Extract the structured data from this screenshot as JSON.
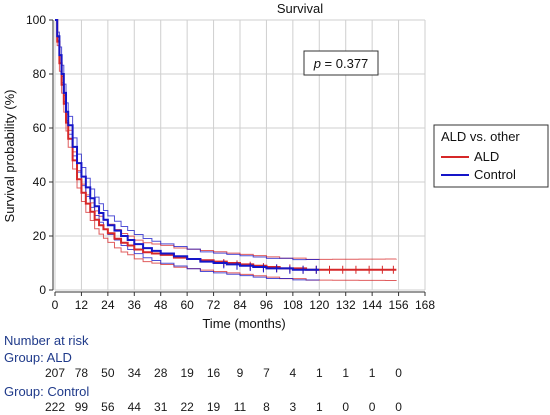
{
  "chart_data": {
    "type": "line",
    "title": "Survival",
    "xlabel": "Time (months)",
    "ylabel": "Survival probability (%)",
    "xlim": [
      0,
      168
    ],
    "ylim": [
      0,
      100
    ],
    "x_ticks": [
      "0",
      "12",
      "24",
      "36",
      "48",
      "60",
      "72",
      "84",
      "96",
      "108",
      "120",
      "132",
      "144",
      "156",
      "168"
    ],
    "y_ticks": [
      "0",
      "20",
      "40",
      "60",
      "80",
      "100"
    ],
    "grid": true,
    "annotation": {
      "italic": "p",
      "text": " = 0.377"
    },
    "legend": {
      "title": "ALD vs. other",
      "position": "right",
      "entries": [
        {
          "label": "ALD",
          "color": "#d62728"
        },
        {
          "label": "Control",
          "color": "#1515c8"
        }
      ]
    },
    "series": [
      {
        "name": "ALD",
        "color": "#d62728",
        "x": [
          0,
          1,
          2,
          3,
          4,
          5,
          6,
          8,
          10,
          12,
          14,
          16,
          18,
          20,
          22,
          24,
          27,
          30,
          33,
          36,
          40,
          44,
          48,
          54,
          60,
          66,
          72,
          78,
          84,
          90,
          96,
          102,
          108,
          114,
          120,
          126,
          132,
          138,
          144,
          150,
          155
        ],
        "y": [
          100,
          92,
          84,
          76,
          69,
          62,
          56,
          48,
          41,
          36,
          32,
          29,
          26,
          24,
          22.5,
          21,
          19,
          17.5,
          16.5,
          15,
          14,
          13.5,
          13,
          12,
          11.5,
          11,
          10.5,
          10,
          9.5,
          9,
          8.5,
          8,
          8,
          7.5,
          7.5,
          7.5,
          7.5,
          7.5,
          7.5,
          7.5,
          7.5
        ]
      },
      {
        "name": "Control",
        "color": "#1515c8",
        "x": [
          0,
          1,
          2,
          3,
          4,
          5,
          6,
          8,
          10,
          12,
          14,
          16,
          18,
          20,
          22,
          24,
          27,
          30,
          33,
          36,
          40,
          44,
          48,
          54,
          60,
          66,
          72,
          78,
          84,
          90,
          96,
          102,
          108,
          114,
          120
        ],
        "y": [
          100,
          94,
          87,
          80,
          73,
          66,
          61,
          53,
          47,
          42,
          38,
          34,
          31,
          28.5,
          26,
          24,
          22,
          20,
          18.5,
          17,
          15.5,
          14.5,
          13.5,
          12.5,
          11.5,
          10.5,
          10,
          9.5,
          9,
          8.5,
          8,
          8,
          7.5,
          7.5,
          7.5
        ]
      }
    ]
  },
  "risk_table": {
    "heading": "Number at risk",
    "groups": [
      {
        "label": "Group: ALD",
        "values": [
          "207",
          "78",
          "50",
          "34",
          "28",
          "19",
          "16",
          "9",
          "7",
          "4",
          "1",
          "1",
          "1",
          "0"
        ]
      },
      {
        "label": "Group: Control",
        "values": [
          "222",
          "99",
          "56",
          "44",
          "31",
          "22",
          "19",
          "11",
          "8",
          "3",
          "1",
          "0",
          "0",
          "0"
        ]
      }
    ]
  }
}
